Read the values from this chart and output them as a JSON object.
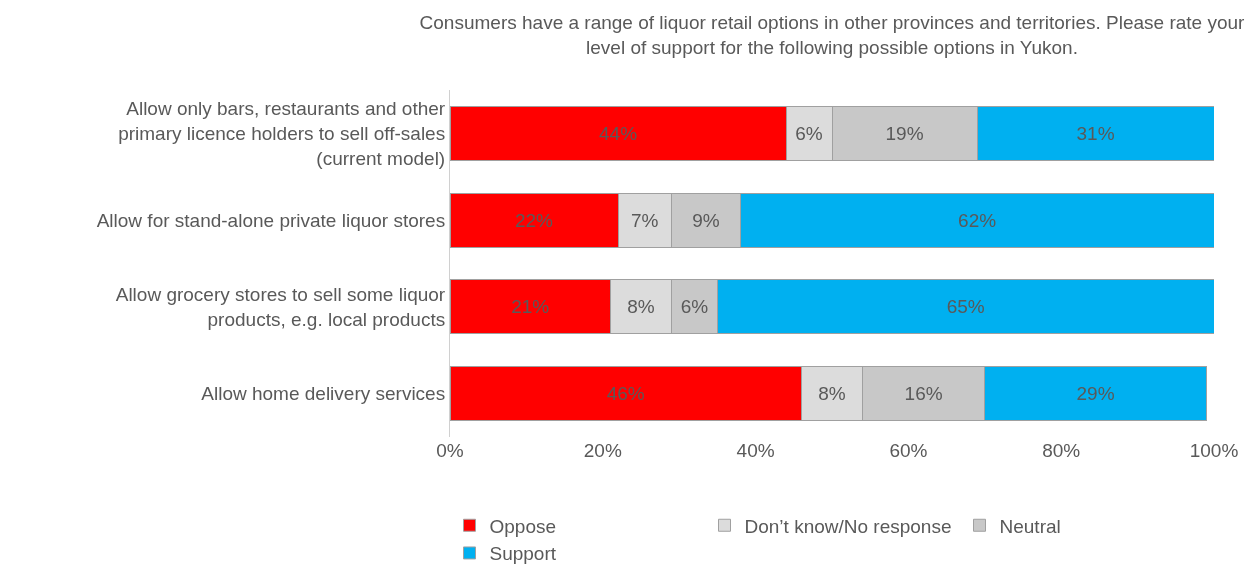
{
  "chart_data": {
    "type": "bar",
    "orientation": "horizontal",
    "stacked": true,
    "title": "Consumers have a range of liquor retail options in other provinces and territories. Please rate your level of support for the following possible options in Yukon.",
    "categories": [
      "Allow only bars, restaurants and other primary licence holders to sell off-sales (current model)",
      "Allow for stand-alone private liquor stores",
      "Allow grocery stores to sell some liquor products, e.g. local products",
      "Allow home delivery services"
    ],
    "series": [
      {
        "name": "Oppose",
        "color": "#ff0000",
        "values": [
          44,
          22,
          21,
          46
        ],
        "value_labels": [
          "44%",
          "22%",
          "21%",
          "46%"
        ]
      },
      {
        "name": "Don’t know/No response",
        "color": "#dcdcdc",
        "values": [
          6,
          7,
          8,
          8
        ],
        "value_labels": [
          "6%",
          "7%",
          "8%",
          "8%"
        ]
      },
      {
        "name": "Neutral",
        "color": "#c8c8c8",
        "values": [
          19,
          9,
          6,
          16
        ],
        "value_labels": [
          "19%",
          "9%",
          "6%",
          "16%"
        ]
      },
      {
        "name": "Support",
        "color": "#00b0f0",
        "values": [
          31,
          62,
          65,
          29
        ],
        "value_labels": [
          "31%",
          "62%",
          "65%",
          "29%"
        ]
      }
    ],
    "xlim": [
      0,
      100
    ],
    "xticks": [
      {
        "value": 0,
        "label": "0%"
      },
      {
        "value": 20,
        "label": "20%"
      },
      {
        "value": 40,
        "label": "40%"
      },
      {
        "value": 60,
        "label": "60%"
      },
      {
        "value": 80,
        "label": "80%"
      },
      {
        "value": 100,
        "label": "100%"
      }
    ],
    "grid": false,
    "legend": "bottom"
  }
}
